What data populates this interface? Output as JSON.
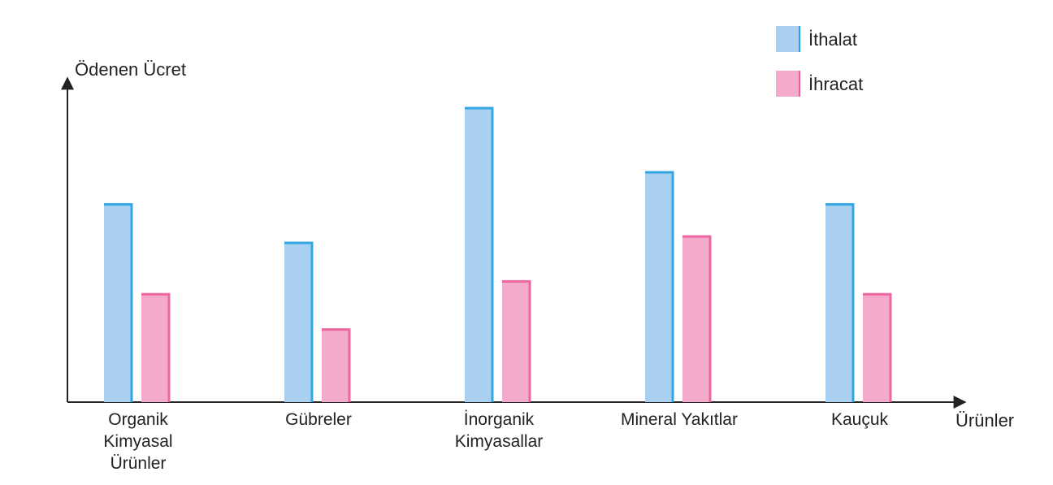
{
  "chart_data": {
    "type": "bar",
    "y_label": "Ödenen Ücret",
    "x_label": "Ürünler",
    "categories": [
      "Organik Kimyasal Ürünler",
      "Gübreler",
      "İnorganik Kimyasallar",
      "Mineral Yakıtlar",
      "Kauçuk"
    ],
    "series": [
      {
        "name": "İthalat",
        "color": "#a9d0f0",
        "edge": "#27a2e0",
        "values": [
          62,
          50,
          92,
          72,
          62
        ]
      },
      {
        "name": "İhracat",
        "color": "#f4aacb",
        "edge": "#ea5f9c",
        "values": [
          34,
          23,
          38,
          52,
          34
        ]
      }
    ],
    "ylim": [
      0,
      100
    ],
    "legend": "top-right"
  }
}
